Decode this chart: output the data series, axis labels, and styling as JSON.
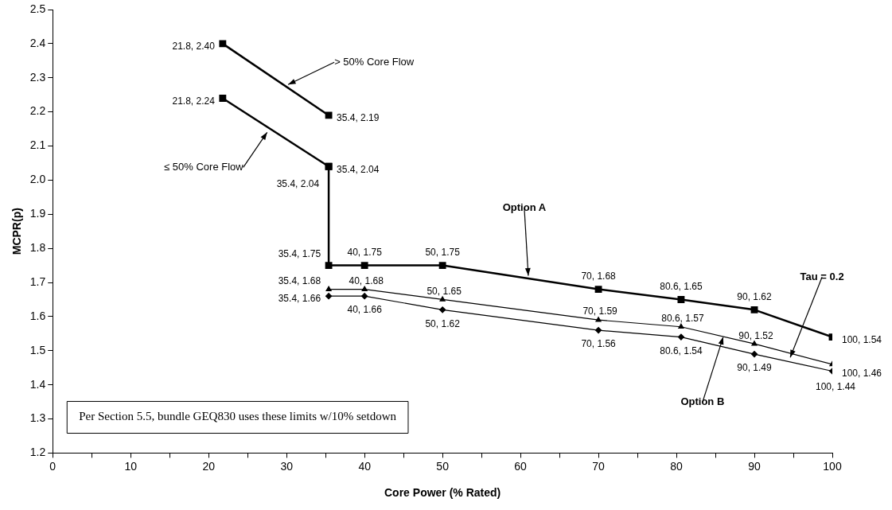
{
  "chart_data": {
    "type": "line",
    "xlabel": "Core Power (% Rated)",
    "ylabel": "MCPR(p)",
    "xlim": [
      0,
      100
    ],
    "xticks": [
      0,
      {
        "value": 5,
        "label": null
      },
      10,
      {
        "value": 15,
        "label": null
      },
      20,
      {
        "value": 25,
        "label": null
      },
      30,
      {
        "value": 35,
        "label": null
      },
      40,
      {
        "value": 45,
        "label": null
      },
      50,
      {
        "value": 55,
        "label": null
      },
      60,
      {
        "value": 65,
        "label": null
      },
      70,
      {
        "value": 75,
        "label": null
      },
      80,
      {
        "value": 85,
        "label": null
      },
      90,
      {
        "value": 95,
        "label": null
      },
      100
    ],
    "ylim": [
      1.2,
      2.5
    ],
    "yticks": [
      1.2,
      1.3,
      1.4,
      1.5,
      1.6,
      1.7,
      1.8,
      1.9,
      {
        "value": 2,
        "label": "2.0"
      },
      2.1,
      2.2,
      2.3,
      2.4,
      2.5
    ],
    "grid": false,
    "legend": false,
    "series": [
      {
        "color": "#000000",
        "marker": "square",
        "x": [
          21.8,
          35.4
        ],
        "values": [
          2.4,
          2.19
        ],
        "value_labels": [
          "21.8, 2.40",
          "35.4, 2.19"
        ]
      },
      {
        "color": "#000000",
        "marker": "square",
        "x": [
          21.8,
          35.4
        ],
        "values": [
          2.24,
          2.04
        ],
        "value_labels": [
          "21.8, 2.24",
          "35.4, 2.04"
        ]
      },
      {
        "color": "#000000",
        "marker": "square",
        "x": [
          35.4,
          35.4,
          40,
          50,
          70,
          80.6,
          90,
          100
        ],
        "values": [
          2.04,
          1.75,
          1.75,
          1.75,
          1.68,
          1.65,
          1.62,
          1.54
        ],
        "value_labels": [
          "35.4, 2.04",
          "35.4, 1.75",
          "40, 1.75",
          "50, 1.75",
          "70, 1.68",
          "80.6, 1.65",
          "90, 1.62",
          "100, 1.54"
        ]
      },
      {
        "color": "#000000",
        "marker": "triangle",
        "x": [
          35.4,
          40,
          50,
          70,
          80.6,
          90,
          100
        ],
        "values": [
          1.68,
          1.68,
          1.65,
          1.59,
          1.57,
          1.52,
          1.46
        ],
        "value_labels": [
          "35.4, 1.68",
          "40, 1.68",
          "50, 1.65",
          "70, 1.59",
          "80.6, 1.57",
          "90, 1.52",
          "100, 1.46"
        ]
      },
      {
        "color": "#000000",
        "marker": "diamond",
        "x": [
          35.4,
          40,
          50,
          70,
          80.6,
          90,
          100
        ],
        "values": [
          1.66,
          1.66,
          1.62,
          1.56,
          1.54,
          1.49,
          1.44
        ],
        "value_labels": [
          "35.4, 1.66",
          "40, 1.66",
          "50, 1.62",
          "70, 1.56",
          "80.6, 1.54",
          "90, 1.49",
          "100, 1.44"
        ]
      }
    ],
    "annotations": [
      "Per Section 5.5, bundle GEQ830 uses these limits w/10% setdown",
      {
        "text": "> 50% Core Flow",
        "x": 30.2,
        "y": 2.28
      },
      {
        "text": "≤ 50% Core Flow",
        "x": 27.5,
        "y": 2.14
      },
      {
        "text": "Option A",
        "x": 61,
        "y": 1.72
      },
      {
        "text": "Tau = 0.2",
        "x": 94.6,
        "y": 1.48
      },
      {
        "text": "Option B",
        "x": 86,
        "y": 1.54
      }
    ]
  }
}
